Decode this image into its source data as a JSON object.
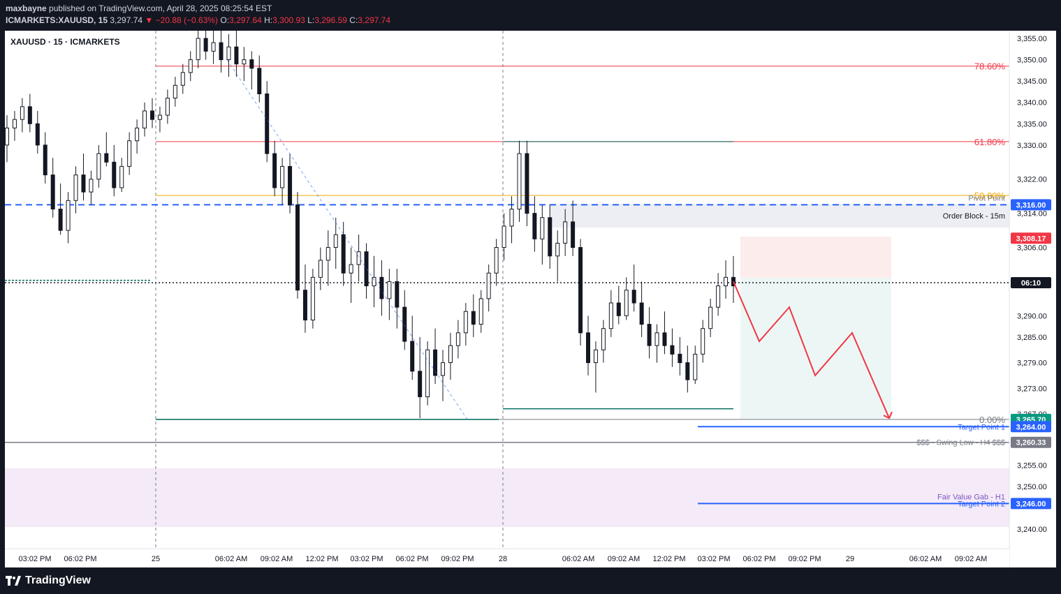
{
  "header": {
    "publisher": "maxbayne",
    "published_text": "published on TradingView.com, April 28, 2025 08:25:54 EST",
    "symbol": "ICMARKETS:XAUUSD, 15",
    "last": "3,297.74",
    "arrow": "▼",
    "change": "−20.88 (−0.63%)",
    "o_label": "O:",
    "o_value": "3,297.64",
    "h_label": "H:",
    "h_value": "3,300.93",
    "l_label": "L:",
    "l_value": "3,296.59",
    "c_label": "C:",
    "c_value": "3,297.74"
  },
  "chart_title": "XAUUSD · 15 · ICMARKETS",
  "footer": {
    "brand": "TradingView"
  },
  "chart_data": {
    "type": "candlestick",
    "symbol": "XAUUSD",
    "timeframe": "15",
    "y_range": [
      3236,
      3358
    ],
    "y_ticks": [
      "3,355.00",
      "3,350.00",
      "3,345.00",
      "3,340.00",
      "3,335.00",
      "3,330.00",
      "3,322.00",
      "3,314.00",
      "3,306.00",
      "3,290.00",
      "3,285.00",
      "3,279.00",
      "3,273.00",
      "3,267.00",
      "3,255.00",
      "3,250.00",
      "3,240.00"
    ],
    "y_tick_values": [
      3355,
      3350,
      3345,
      3340,
      3335,
      3330,
      3322,
      3314,
      3306,
      3290,
      3285,
      3279,
      3273,
      3267,
      3255,
      3250,
      3240
    ],
    "x_labels": [
      "03:02 PM",
      "06:02 PM",
      "25",
      "06:02 AM",
      "09:02 AM",
      "12:02 PM",
      "03:02 PM",
      "06:02 PM",
      "09:02 PM",
      "28",
      "06:02 AM",
      "09:02 AM",
      "12:02 PM",
      "03:02 PM",
      "06:02 PM",
      "09:02 PM",
      "29",
      "06:02 AM",
      "09:02 AM"
    ],
    "price_labels": [
      {
        "text": "3,316.00",
        "value": 3316.0,
        "color": "#2962ff"
      },
      {
        "text": "3,308.17",
        "value": 3308.17,
        "color": "#f23645"
      },
      {
        "text": "06:10",
        "value": 3297.74,
        "color": "#131722"
      },
      {
        "text": "3,265.70",
        "value": 3265.7,
        "color": "#089981"
      },
      {
        "text": "3,264.00",
        "value": 3264.0,
        "color": "#2962ff"
      },
      {
        "text": "3,260.33",
        "value": 3260.33,
        "color": "#787b86"
      },
      {
        "text": "3,246.00",
        "value": 3246.0,
        "color": "#2962ff"
      }
    ],
    "fib_levels": [
      {
        "label": "78.60%",
        "value": 3348.5,
        "color": "#f23645"
      },
      {
        "label": "61.80%",
        "value": 3330.8,
        "color": "#f23645"
      },
      {
        "label": "50.00%",
        "value": 3318.2,
        "color": "#f2a900"
      },
      {
        "label": "0.00%",
        "value": 3265.7,
        "color": "#787b86"
      }
    ],
    "annotations": {
      "pivot_point": "Pivot Point",
      "order_block": "Order Block - 15m",
      "target_1": "Target Point 1",
      "swing_low": "$$$ - Swing Low - H4 $$$",
      "fvg": "Fair Value Gab - H1",
      "target_2": "Target Point 2"
    },
    "colors": {
      "up": "#089981",
      "down": "#131722",
      "bull_candle": "#131722",
      "pivot": "#2962ff",
      "projection": "#f23645"
    },
    "candles": [
      [
        3330,
        3337,
        3326,
        3334
      ],
      [
        3334,
        3338,
        3331,
        3336
      ],
      [
        3336,
        3341,
        3333,
        3339
      ],
      [
        3339,
        3342,
        3333,
        3335
      ],
      [
        3335,
        3338,
        3328,
        3330
      ],
      [
        3330,
        3333,
        3321,
        3323
      ],
      [
        3323,
        3327,
        3313,
        3315
      ],
      [
        3315,
        3321,
        3309,
        3310
      ],
      [
        3310,
        3319,
        3307,
        3317
      ],
      [
        3317,
        3325,
        3314,
        3323
      ],
      [
        3323,
        3328,
        3317,
        3319
      ],
      [
        3319,
        3324,
        3316,
        3322
      ],
      [
        3322,
        3330,
        3320,
        3328
      ],
      [
        3328,
        3333,
        3325,
        3326
      ],
      [
        3326,
        3330,
        3318,
        3320
      ],
      [
        3320,
        3327,
        3319,
        3325
      ],
      [
        3325,
        3333,
        3323,
        3331
      ],
      [
        3331,
        3336,
        3328,
        3334
      ],
      [
        3334,
        3340,
        3332,
        3338
      ],
      [
        3338,
        3341,
        3334,
        3336
      ],
      [
        3336,
        3339,
        3333,
        3337
      ],
      [
        3337,
        3343,
        3335,
        3341
      ],
      [
        3341,
        3346,
        3339,
        3344
      ],
      [
        3344,
        3349,
        3342,
        3347
      ],
      [
        3347,
        3352,
        3345,
        3350
      ],
      [
        3350,
        3358,
        3348,
        3355
      ],
      [
        3355,
        3358,
        3350,
        3352
      ],
      [
        3352,
        3358,
        3349,
        3354
      ],
      [
        3354,
        3358,
        3347,
        3350
      ],
      [
        3350,
        3356,
        3346,
        3353
      ],
      [
        3353,
        3357,
        3346,
        3349
      ],
      [
        3349,
        3353,
        3345,
        3350
      ],
      [
        3350,
        3352,
        3343,
        3348
      ],
      [
        3348,
        3351,
        3340,
        3342
      ],
      [
        3342,
        3345,
        3326,
        3328
      ],
      [
        3328,
        3331,
        3318,
        3320
      ],
      [
        3320,
        3327,
        3316,
        3325
      ],
      [
        3325,
        3328,
        3314,
        3316
      ],
      [
        3316,
        3319,
        3294,
        3296
      ],
      [
        3296,
        3302,
        3286,
        3289
      ],
      [
        3289,
        3301,
        3287,
        3299
      ],
      [
        3299,
        3306,
        3296,
        3303
      ],
      [
        3303,
        3310,
        3297,
        3306
      ],
      [
        3306,
        3313,
        3301,
        3309
      ],
      [
        3309,
        3312,
        3297,
        3300
      ],
      [
        3300,
        3306,
        3293,
        3302
      ],
      [
        3302,
        3309,
        3298,
        3305
      ],
      [
        3305,
        3307,
        3294,
        3297
      ],
      [
        3297,
        3304,
        3292,
        3299
      ],
      [
        3299,
        3303,
        3290,
        3294
      ],
      [
        3294,
        3301,
        3289,
        3298
      ],
      [
        3298,
        3301,
        3287,
        3292
      ],
      [
        3292,
        3296,
        3282,
        3284
      ],
      [
        3284,
        3290,
        3275,
        3277
      ],
      [
        3277,
        3285,
        3266,
        3271
      ],
      [
        3271,
        3284,
        3269,
        3282
      ],
      [
        3282,
        3287,
        3274,
        3276
      ],
      [
        3276,
        3282,
        3270,
        3279
      ],
      [
        3279,
        3286,
        3275,
        3283
      ],
      [
        3283,
        3289,
        3280,
        3286
      ],
      [
        3286,
        3293,
        3283,
        3291
      ],
      [
        3291,
        3295,
        3285,
        3288
      ],
      [
        3288,
        3296,
        3286,
        3294
      ],
      [
        3294,
        3302,
        3291,
        3300
      ],
      [
        3300,
        3308,
        3297,
        3306
      ],
      [
        3306,
        3314,
        3303,
        3311
      ],
      [
        3311,
        3318,
        3307,
        3315
      ],
      [
        3315,
        3331,
        3312,
        3328
      ],
      [
        3328,
        3331,
        3311,
        3314
      ],
      [
        3314,
        3318,
        3305,
        3308
      ],
      [
        3308,
        3316,
        3302,
        3313
      ],
      [
        3313,
        3316,
        3301,
        3304
      ],
      [
        3304,
        3310,
        3298,
        3307
      ],
      [
        3307,
        3315,
        3304,
        3312
      ],
      [
        3312,
        3317,
        3304,
        3306
      ],
      [
        3306,
        3308,
        3283,
        3286
      ],
      [
        3286,
        3290,
        3276,
        3279
      ],
      [
        3279,
        3284,
        3272,
        3282
      ],
      [
        3282,
        3289,
        3279,
        3287
      ],
      [
        3287,
        3296,
        3285,
        3293
      ],
      [
        3293,
        3297,
        3288,
        3290
      ],
      [
        3290,
        3299,
        3289,
        3296
      ],
      [
        3296,
        3302,
        3291,
        3293
      ],
      [
        3293,
        3298,
        3285,
        3288
      ],
      [
        3288,
        3292,
        3280,
        3283
      ],
      [
        3283,
        3288,
        3279,
        3286
      ],
      [
        3286,
        3291,
        3281,
        3283
      ],
      [
        3283,
        3287,
        3278,
        3281
      ],
      [
        3281,
        3285,
        3276,
        3279
      ],
      [
        3279,
        3283,
        3272,
        3275
      ],
      [
        3275,
        3283,
        3274,
        3281
      ],
      [
        3281,
        3289,
        3279,
        3287
      ],
      [
        3287,
        3294,
        3285,
        3292
      ],
      [
        3292,
        3300,
        3290,
        3297
      ],
      [
        3297,
        3303,
        3294,
        3299
      ],
      [
        3299,
        3304,
        3293,
        3297
      ]
    ],
    "projection_path": [
      [
        3298,
        0
      ],
      [
        3284,
        1
      ],
      [
        3292,
        2
      ],
      [
        3276,
        3
      ],
      [
        3286,
        4
      ],
      [
        3266,
        5
      ]
    ]
  }
}
